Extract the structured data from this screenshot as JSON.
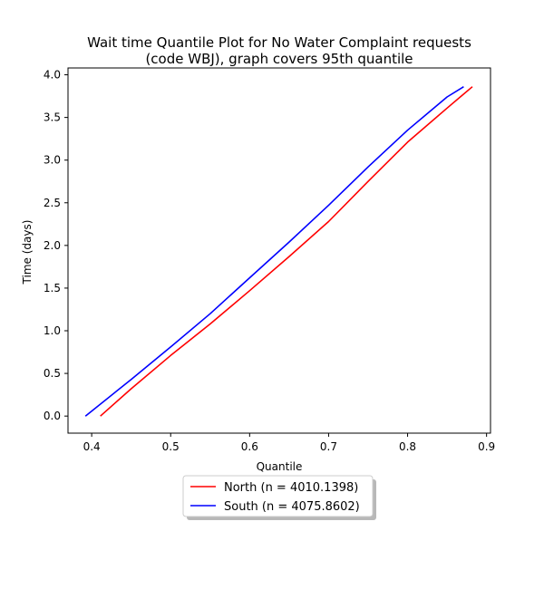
{
  "chart_data": {
    "type": "line",
    "title": [
      "Wait time Quantile Plot for No Water Complaint  requests",
      "(code WBJ), graph covers 95th quantile"
    ],
    "xlabel": "Quantile",
    "ylabel": "Time (days)",
    "xlim": [
      0.37,
      0.905
    ],
    "ylim": [
      -0.2,
      4.08
    ],
    "xticks": [
      "0.4",
      "0.5",
      "0.6",
      "0.7",
      "0.8",
      "0.9"
    ],
    "yticks": [
      "0.0",
      "0.5",
      "1.0",
      "1.5",
      "2.0",
      "2.5",
      "3.0",
      "3.5",
      "4.0"
    ],
    "grid": false,
    "legend_position": "below plot, centered",
    "series": [
      {
        "name": "North (n = 4010.1398)",
        "color": "#ff0000",
        "x": [
          0.411,
          0.45,
          0.5,
          0.55,
          0.6,
          0.65,
          0.7,
          0.75,
          0.8,
          0.85,
          0.882
        ],
        "y": [
          0.0,
          0.32,
          0.71,
          1.08,
          1.47,
          1.87,
          2.28,
          2.75,
          3.21,
          3.61,
          3.86
        ]
      },
      {
        "name": "South (n = 4075.8602)",
        "color": "#0000ff",
        "x": [
          0.392,
          0.45,
          0.5,
          0.55,
          0.6,
          0.65,
          0.7,
          0.75,
          0.8,
          0.85,
          0.871
        ],
        "y": [
          0.0,
          0.43,
          0.81,
          1.2,
          1.62,
          2.04,
          2.47,
          2.92,
          3.35,
          3.74,
          3.86
        ]
      }
    ]
  }
}
